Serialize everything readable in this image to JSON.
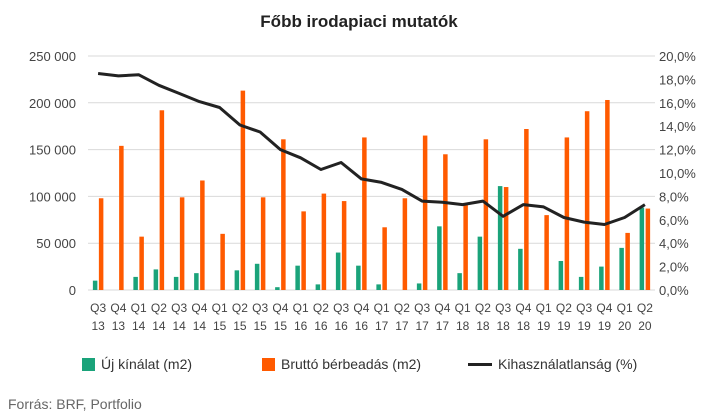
{
  "colors": {
    "new_supply": "#1aa37a",
    "gross_leasing": "#ff5a00",
    "vacancy": "#222222",
    "gridline": "#d9d9d9"
  },
  "chart_data": {
    "type": "bar",
    "title": "Főbb irodapiaci mutatók",
    "categories": [
      [
        "Q3",
        "13"
      ],
      [
        "Q4",
        "13"
      ],
      [
        "Q1",
        "14"
      ],
      [
        "Q2",
        "14"
      ],
      [
        "Q3",
        "14"
      ],
      [
        "Q4",
        "14"
      ],
      [
        "Q1",
        "15"
      ],
      [
        "Q2",
        "15"
      ],
      [
        "Q3",
        "15"
      ],
      [
        "Q4",
        "15"
      ],
      [
        "Q1",
        "16"
      ],
      [
        "Q2",
        "16"
      ],
      [
        "Q3",
        "16"
      ],
      [
        "Q4",
        "16"
      ],
      [
        "Q1",
        "17"
      ],
      [
        "Q2",
        "17"
      ],
      [
        "Q3",
        "17"
      ],
      [
        "Q4",
        "17"
      ],
      [
        "Q1",
        "18"
      ],
      [
        "Q2",
        "18"
      ],
      [
        "Q3",
        "18"
      ],
      [
        "Q4",
        "18"
      ],
      [
        "Q1",
        "19"
      ],
      [
        "Q2",
        "19"
      ],
      [
        "Q3",
        "19"
      ],
      [
        "Q4",
        "19"
      ],
      [
        "Q1",
        "20"
      ],
      [
        "Q2",
        "20"
      ]
    ],
    "series": [
      {
        "name": "Új kínálat (m2)",
        "type": "bar",
        "axis": "left",
        "values": [
          10000,
          0,
          14000,
          22000,
          14000,
          18000,
          0,
          21000,
          28000,
          3000,
          26000,
          6000,
          40000,
          26000,
          6000,
          0,
          7000,
          68000,
          18000,
          57000,
          111000,
          44000,
          0,
          31000,
          14000,
          25000,
          45000,
          88000
        ]
      },
      {
        "name": "Bruttó bérbeadás (m2)",
        "type": "bar",
        "axis": "left",
        "values": [
          98000,
          154000,
          57000,
          192000,
          99000,
          117000,
          60000,
          213000,
          99000,
          161000,
          84000,
          103000,
          95000,
          163000,
          67000,
          98000,
          165000,
          145000,
          91000,
          161000,
          110000,
          172000,
          80000,
          163000,
          191000,
          203000,
          61000,
          87000
        ]
      },
      {
        "name": "Kihasználatlanság (%)",
        "type": "line",
        "axis": "right",
        "values": [
          18.5,
          18.3,
          18.4,
          17.5,
          16.8,
          16.1,
          15.6,
          14.1,
          13.5,
          12.0,
          11.3,
          10.3,
          10.9,
          9.5,
          9.2,
          8.6,
          7.6,
          7.5,
          7.3,
          7.6,
          6.3,
          7.3,
          7.1,
          6.2,
          5.8,
          5.6,
          6.2,
          7.3
        ]
      }
    ],
    "y_left": {
      "ylim": [
        0,
        250000
      ],
      "ticks": [
        0,
        50000,
        100000,
        150000,
        200000,
        250000
      ],
      "tick_labels": [
        "0",
        "50 000",
        "100 000",
        "150 000",
        "200 000",
        "250 000"
      ]
    },
    "y_right": {
      "ylim": [
        0,
        20
      ],
      "ticks": [
        0,
        2,
        4,
        6,
        8,
        10,
        12,
        14,
        16,
        18,
        20
      ],
      "tick_labels": [
        "0,0%",
        "2,0%",
        "4,0%",
        "6,0%",
        "8,0%",
        "10,0%",
        "12,0%",
        "14,0%",
        "16,0%",
        "18,0%",
        "20,0%"
      ]
    },
    "grid": true,
    "legend_position": "bottom"
  },
  "source_text": "Forrás: BRF, Portfolio"
}
